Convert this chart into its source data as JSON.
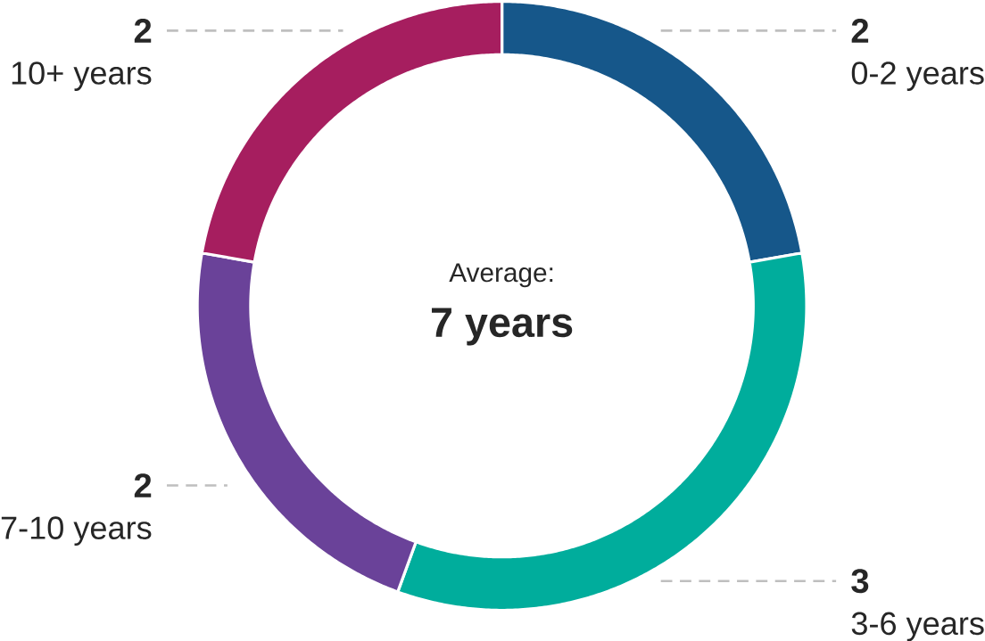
{
  "chart_data": {
    "type": "donut",
    "categories": [
      "0-2 years",
      "3-6 years",
      "7-10 years",
      "10+ years"
    ],
    "values": [
      2,
      3,
      2,
      2
    ],
    "colors": [
      "#16578a",
      "#00ad9c",
      "#6a4299",
      "#a61e5f"
    ],
    "data_labels": true,
    "annotations": [
      "Average:",
      "7 years"
    ]
  }
}
